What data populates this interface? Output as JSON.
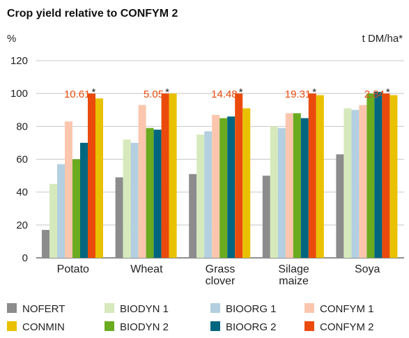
{
  "chart_data": {
    "type": "bar",
    "title": "Crop yield relative to CONFYM 2",
    "y_label": "%",
    "y2_label": "t DM/ha*",
    "categories": [
      "Potato",
      "Wheat",
      "Grass clover",
      "Silage maize",
      "Soya"
    ],
    "series": [
      {
        "name": "NOFERT",
        "color": "#8c8c8c",
        "values": [
          17,
          49,
          51,
          50,
          63
        ]
      },
      {
        "name": "BIODYN 1",
        "color": "#d6e9bc",
        "values": [
          45,
          72,
          75,
          80,
          91
        ]
      },
      {
        "name": "BIOORG 1",
        "color": "#b4cfdf",
        "values": [
          57,
          70,
          77,
          79,
          90
        ]
      },
      {
        "name": "CONFYM 1",
        "color": "#fbc6ad",
        "values": [
          83,
          93,
          87,
          88,
          93
        ]
      },
      {
        "name": "CONMIN",
        "color": "#e9c100",
        "values": [
          97,
          100,
          91,
          99,
          99
        ]
      },
      {
        "name": "BIODYN 2",
        "color": "#6aab1f",
        "values": [
          60,
          79,
          85,
          88,
          100
        ]
      },
      {
        "name": "BIOORG 2",
        "color": "#006680",
        "values": [
          70,
          78,
          86,
          85,
          101
        ]
      },
      {
        "name": "CONFYM 2",
        "color": "#ea4b0c",
        "values": [
          100,
          100,
          100,
          100,
          100
        ]
      }
    ],
    "annotations": [
      {
        "text": "10.61",
        "note": "*"
      },
      {
        "text": "5.05",
        "note": "*"
      },
      {
        "text": "14.48",
        "note": "*"
      },
      {
        "text": "19.31",
        "note": "*"
      },
      {
        "text": "2.84",
        "note": "*"
      }
    ],
    "annotation_color": "#ea4b0c",
    "ylim": [
      0,
      120
    ],
    "yticks": [
      0,
      20,
      40,
      60,
      80,
      100,
      120
    ],
    "grid": true
  }
}
